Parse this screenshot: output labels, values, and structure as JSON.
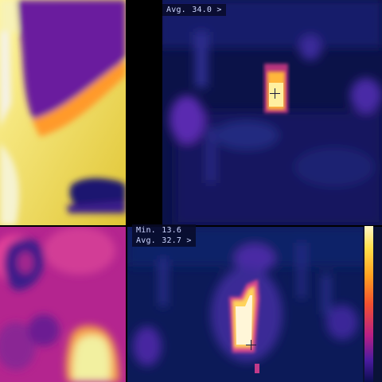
{
  "panels": {
    "top_right": {
      "readout": {
        "label": "Avg.",
        "value": "34.0 >"
      }
    },
    "bottom_right": {
      "readout": {
        "min_label": "Min.",
        "min_value": "13.6",
        "avg_label": "Avg.",
        "avg_value": "32.7 >"
      }
    }
  },
  "colors": {
    "hot": "#fff7c8",
    "warm": "#ffe04a",
    "mid": "#f25030",
    "cool": "#4a1ba0",
    "cold": "#0a0e50"
  },
  "icons": [
    "crosshair-icon",
    "temperature-palette-bar"
  ]
}
